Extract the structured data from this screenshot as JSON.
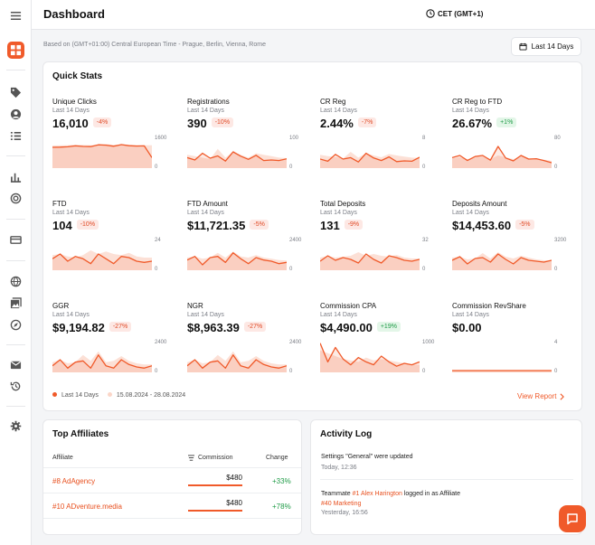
{
  "header": {
    "title": "Dashboard",
    "timezone": "CET (GMT+1)"
  },
  "subheader": {
    "based_on": "Based on (GMT+01:00) Central European Time - Prague, Berlin, Vienna, Rome",
    "range_button": "Last 14 Days"
  },
  "quick_stats": {
    "title": "Quick Stats",
    "legend_current": "Last 14 Days",
    "legend_previous": "15.08.2024 - 28.08.2024",
    "view_report": "View Report",
    "colors": {
      "current": "#f05a2a",
      "previous": "#fbd6c8"
    },
    "stats": [
      {
        "name": "Unique Clicks",
        "period": "Last 14 Days",
        "value": "16,010",
        "change": "-4%",
        "trend": "neg",
        "ymax": "1600",
        "ymin": "0",
        "max": 1600,
        "current": [
          1050,
          1060,
          1080,
          1130,
          1100,
          1090,
          1190,
          1170,
          1110,
          1200,
          1140,
          1120,
          1130,
          480
        ],
        "previous": [
          1150,
          1160,
          1170,
          1200,
          1180,
          1170,
          1190,
          1230,
          1190,
          1200,
          1190,
          1180,
          1170,
          1160
        ]
      },
      {
        "name": "Registrations",
        "period": "Last 14 Days",
        "value": "390",
        "change": "-10%",
        "trend": "neg",
        "ymax": "100",
        "ymin": "0",
        "max": 100,
        "current": [
          30,
          22,
          45,
          28,
          36,
          18,
          50,
          35,
          24,
          38,
          20,
          22,
          20,
          26
        ],
        "previous": [
          40,
          35,
          30,
          25,
          60,
          30,
          50,
          40,
          30,
          45,
          40,
          35,
          30,
          28
        ]
      },
      {
        "name": "CR Reg",
        "period": "Last 14 Days",
        "value": "2.44%",
        "change": "-7%",
        "trend": "neg",
        "ymax": "8",
        "ymin": "0",
        "max": 8,
        "current": [
          2.0,
          1.4,
          3.3,
          2.0,
          2.4,
          1.2,
          3.6,
          2.3,
          1.6,
          2.6,
          1.3,
          1.5,
          1.4,
          2.5
        ],
        "previous": [
          3.2,
          2.8,
          2.6,
          2.2,
          4.0,
          2.4,
          3.6,
          3.0,
          2.5,
          3.4,
          3.0,
          2.7,
          2.4,
          2.3
        ]
      },
      {
        "name": "CR Reg to FTD",
        "period": "Last 14 Days",
        "value": "26.67%",
        "change": "+1%",
        "trend": "pos",
        "ymax": "80",
        "ymin": "0",
        "max": 80,
        "current": [
          24,
          30,
          16,
          27,
          30,
          17,
          55,
          23,
          15,
          30,
          20,
          21,
          16,
          10
        ],
        "previous": [
          22,
          25,
          20,
          24,
          28,
          20,
          30,
          25,
          20,
          28,
          22,
          21,
          18,
          15
        ]
      },
      {
        "name": "FTD",
        "period": "Last 14 Days",
        "value": "104",
        "change": "-10%",
        "trend": "neg",
        "ymax": "24",
        "ymin": "0",
        "max": 24,
        "current": [
          8,
          12,
          6,
          10,
          8,
          4,
          12,
          8,
          4,
          10,
          9,
          6,
          5,
          6
        ],
        "previous": [
          11,
          12,
          10,
          9,
          11,
          15,
          12,
          14,
          12,
          11,
          13,
          10,
          9,
          9
        ]
      },
      {
        "name": "FTD Amount",
        "period": "Last 14 Days",
        "value": "$11,721.35",
        "change": "-5%",
        "trend": "neg",
        "ymax": "2400",
        "ymin": "0",
        "max": 2400,
        "current": [
          700,
          1000,
          300,
          900,
          1000,
          500,
          1300,
          800,
          400,
          900,
          700,
          600,
          400,
          500
        ],
        "previous": [
          900,
          1000,
          800,
          900,
          1300,
          900,
          1400,
          1000,
          900,
          1100,
          900,
          800,
          700,
          650
        ]
      },
      {
        "name": "Total Deposits",
        "period": "Last 14 Days",
        "value": "131",
        "change": "-9%",
        "trend": "neg",
        "ymax": "32",
        "ymin": "0",
        "max": 32,
        "current": [
          8,
          14,
          9,
          12,
          10,
          6,
          16,
          10,
          6,
          14,
          12,
          9,
          8,
          10
        ],
        "previous": [
          12,
          14,
          12,
          13,
          14,
          18,
          14,
          16,
          14,
          13,
          15,
          12,
          11,
          11
        ]
      },
      {
        "name": "Deposits Amount",
        "period": "Last 14 Days",
        "value": "$14,453.60",
        "change": "-5%",
        "trend": "neg",
        "ymax": "3200",
        "ymin": "0",
        "max": 3200,
        "current": [
          900,
          1300,
          500,
          1100,
          1200,
          700,
          1600,
          1000,
          500,
          1200,
          900,
          800,
          700,
          900
        ],
        "previous": [
          1200,
          1300,
          1000,
          1100,
          1700,
          1100,
          1800,
          1300,
          1100,
          1400,
          1200,
          1000,
          900,
          900
        ]
      },
      {
        "name": "GGR",
        "period": "Last 14 Days",
        "value": "$9,194.82",
        "change": "-27%",
        "trend": "neg",
        "ymax": "2400",
        "ymin": "0",
        "max": 2400,
        "current": [
          400,
          900,
          200,
          700,
          800,
          200,
          1300,
          400,
          200,
          900,
          500,
          300,
          200,
          400
        ],
        "previous": [
          700,
          900,
          600,
          700,
          1300,
          800,
          1600,
          700,
          800,
          1200,
          800,
          600,
          500,
          500
        ]
      },
      {
        "name": "NGR",
        "period": "Last 14 Days",
        "value": "$8,963.39",
        "change": "-27%",
        "trend": "neg",
        "ymax": "2400",
        "ymin": "0",
        "max": 2400,
        "current": [
          400,
          900,
          200,
          700,
          800,
          200,
          1300,
          400,
          200,
          900,
          500,
          300,
          200,
          400
        ],
        "previous": [
          700,
          900,
          600,
          700,
          1300,
          800,
          1600,
          700,
          800,
          1200,
          800,
          600,
          500,
          500
        ]
      },
      {
        "name": "Commission CPA",
        "period": "Last 14 Days",
        "value": "$4,490.00",
        "change": "+19%",
        "trend": "pos",
        "ymax": "1000",
        "ymin": "0",
        "max": 1000,
        "current": [
          950,
          300,
          800,
          400,
          200,
          450,
          300,
          200,
          500,
          300,
          150,
          250,
          200,
          300
        ],
        "previous": [
          700,
          600,
          500,
          400,
          350,
          300,
          450,
          350,
          400,
          350,
          300,
          250,
          200,
          200
        ]
      },
      {
        "name": "Commission RevShare",
        "period": "Last 14 Days",
        "value": "$0.00",
        "change": "",
        "trend": "",
        "ymax": "4",
        "ymin": "0",
        "max": 4,
        "current": [
          0,
          0,
          0,
          0,
          0,
          0,
          0,
          0,
          0,
          0,
          0,
          0,
          0,
          0
        ],
        "previous": [
          0,
          0,
          0,
          0,
          0,
          0,
          0,
          0,
          0,
          0,
          0,
          0,
          0,
          0
        ]
      }
    ]
  },
  "top_affiliates": {
    "title": "Top Affiliates",
    "col_affiliate": "Affiliate",
    "col_commission": "Commission",
    "col_change": "Change",
    "rows": [
      {
        "name": "#8 AdAgency",
        "commission": "$480",
        "change": "+33%",
        "fill": 1.0
      },
      {
        "name": "#10 ADventure.media",
        "commission": "$480",
        "change": "+78%",
        "fill": 1.0
      }
    ]
  },
  "activity_log": {
    "title": "Activity Log",
    "item1_text": "Settings \"General\" were updated",
    "item1_time": "Today, 12:36",
    "item2_prefix": "Teammate ",
    "item2_user": "#1 Alex Harington",
    "item2_mid": " logged in as Affiliate",
    "item2_target": "#40 Marketing",
    "item2_time": "Yesterday, 16:56"
  }
}
